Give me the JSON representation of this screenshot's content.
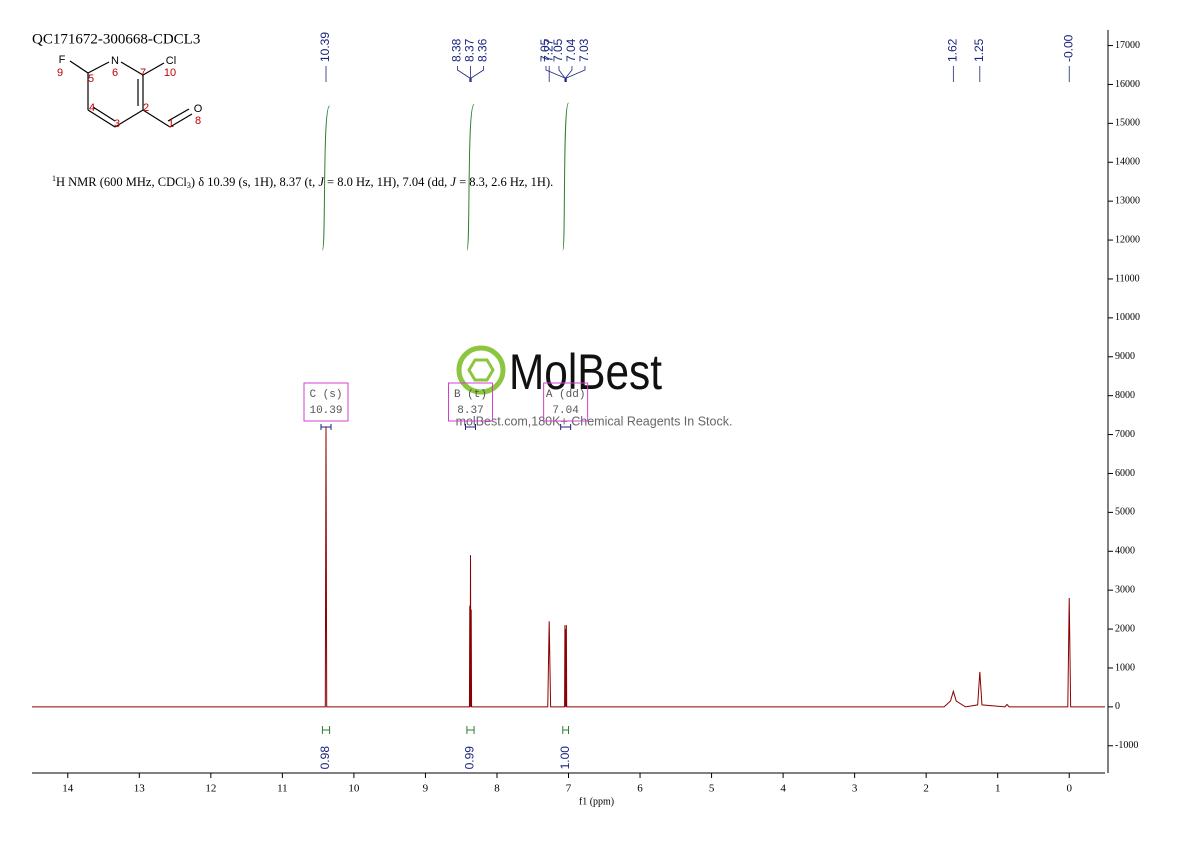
{
  "chart_data": {
    "type": "line",
    "title": "QC171672-300668-CDCL3",
    "xlabel": "f1 (ppm)",
    "xlim": [
      14.5,
      -0.5
    ],
    "xticks": [
      14,
      13,
      12,
      11,
      10,
      9,
      8,
      7,
      6,
      5,
      4,
      3,
      2,
      1,
      0
    ],
    "ylim": [
      -1700,
      17400
    ],
    "yticks": [
      -1000,
      0,
      1000,
      2000,
      3000,
      4000,
      5000,
      6000,
      7000,
      8000,
      9000,
      10000,
      11000,
      12000,
      13000,
      14000,
      15000,
      16000,
      17000
    ],
    "x": [
      14.5,
      10.45,
      10.4,
      10.39,
      10.38,
      8.4,
      8.385,
      8.38,
      8.375,
      8.37,
      8.365,
      8.36,
      8.355,
      7.29,
      7.27,
      7.25,
      7.07,
      7.055,
      7.05,
      7.045,
      7.04,
      7.035,
      7.03,
      7.025,
      1.75,
      1.66,
      1.62,
      1.58,
      1.45,
      1.28,
      1.25,
      1.22,
      0.9,
      0.87,
      0.84,
      0.02,
      0.0,
      -0.02,
      -0.5
    ],
    "series": [
      {
        "color": "#8b0000",
        "values": [
          0,
          0,
          0,
          7200,
          0,
          0,
          0,
          2600,
          0,
          3900,
          0,
          2500,
          0,
          0,
          2200,
          0,
          0,
          0,
          2100,
          0,
          2000,
          0,
          2100,
          0,
          0,
          150,
          400,
          150,
          0,
          50,
          900,
          50,
          0,
          60,
          0,
          0,
          2800,
          0,
          0
        ]
      }
    ],
    "peak_labels": [
      10.39,
      8.38,
      8.37,
      8.36,
      7.27,
      7.05,
      7.05,
      7.04,
      7.03,
      1.62,
      1.25,
      {
        "value": 0,
        "label": "-0.00"
      }
    ],
    "integrals": {
      "ranges": [
        [
          10.44,
          10.34
        ],
        [
          8.42,
          8.32
        ],
        [
          7.08,
          7.0
        ]
      ],
      "values": [
        0.98,
        0.99,
        1
      ],
      "value_labels": [
        "0.98",
        "0.99",
        "1.00"
      ]
    },
    "multiplets": [
      {
        "label": "C (s)",
        "shift": 10.39
      },
      {
        "label": "B (t)",
        "shift": 8.37
      },
      {
        "label": "A (dd)",
        "shift": 7.04
      }
    ],
    "description": [
      "1",
      "H NMR (600 MHz, CDCl",
      "3",
      ") δ 10.39 (s, 1H), 8.37 (t, ",
      "J",
      " = 8.0 Hz, 1H), 7.04 (dd, ",
      "J",
      " = 8.3, 2.6 Hz, 1H)."
    ],
    "structure": {
      "atoms": [
        "F",
        "N",
        "Cl",
        "O"
      ],
      "numbers": [
        "9",
        "5",
        "6",
        "7",
        "10",
        "4",
        "2",
        "3",
        "1",
        "8"
      ]
    },
    "watermark": {
      "brand": "MolBest",
      "tagline": "molBest.com,180K+ Chemical Reagents In Stock."
    }
  }
}
